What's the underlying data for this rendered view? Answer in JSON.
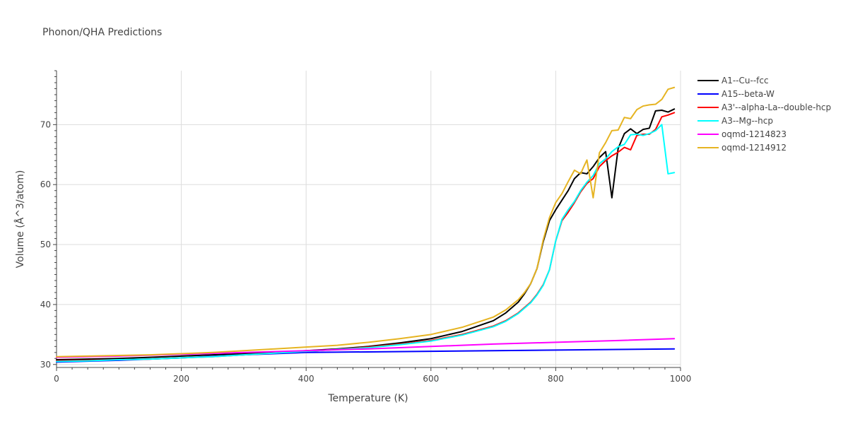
{
  "chart_data": {
    "type": "line",
    "title": "Phonon/QHA Predictions",
    "xlabel": "Temperature (K)",
    "ylabel": "Volume (Å^3/atom)",
    "xlim": [
      0,
      1000
    ],
    "ylim": [
      29.5,
      79
    ],
    "xticks": [
      0,
      200,
      400,
      600,
      800,
      1000
    ],
    "yticks": [
      30,
      40,
      50,
      60,
      70
    ],
    "grid": true,
    "legend_position": "right",
    "series": [
      {
        "name": "A1--Cu--fcc",
        "color": "#000000",
        "x": [
          0,
          50,
          100,
          150,
          200,
          250,
          300,
          350,
          400,
          450,
          500,
          550,
          600,
          650,
          700,
          720,
          740,
          750,
          760,
          770,
          780,
          790,
          800,
          820,
          830,
          840,
          850,
          860,
          870,
          880,
          890,
          900,
          910,
          920,
          930,
          940,
          950,
          960,
          970,
          980,
          990
        ],
        "y": [
          30.8,
          30.9,
          31.0,
          31.2,
          31.4,
          31.6,
          31.8,
          32.0,
          32.3,
          32.6,
          33.0,
          33.6,
          34.3,
          35.5,
          37.3,
          38.6,
          40.4,
          41.8,
          43.5,
          46.0,
          50.5,
          54.0,
          55.8,
          59.0,
          61.0,
          62.0,
          61.8,
          63.0,
          64.5,
          65.5,
          57.8,
          66.0,
          68.5,
          69.3,
          68.5,
          69.2,
          69.4,
          72.3,
          72.4,
          72.1,
          72.6
        ]
      },
      {
        "name": "A15--beta-W",
        "color": "#0000ff",
        "x": [
          0,
          100,
          200,
          300,
          400,
          500,
          600,
          700,
          800,
          900,
          990
        ],
        "y": [
          30.4,
          30.7,
          31.1,
          31.6,
          32.0,
          32.1,
          32.2,
          32.3,
          32.4,
          32.5,
          32.6
        ]
      },
      {
        "name": "A3'--alpha-La--double-hcp",
        "color": "#ff0000",
        "x": [
          0,
          50,
          100,
          150,
          200,
          250,
          300,
          350,
          400,
          450,
          500,
          550,
          600,
          650,
          700,
          720,
          740,
          760,
          770,
          780,
          790,
          800,
          810,
          820,
          830,
          840,
          850,
          860,
          870,
          880,
          890,
          900,
          910,
          920,
          930,
          940,
          950,
          960,
          970,
          980,
          990
        ],
        "y": [
          30.6,
          30.7,
          30.8,
          30.9,
          31.1,
          31.3,
          31.6,
          31.9,
          32.2,
          32.5,
          32.9,
          33.4,
          34.0,
          35.0,
          36.4,
          37.3,
          38.6,
          40.4,
          41.7,
          43.3,
          45.8,
          50.6,
          54.0,
          55.4,
          57.0,
          58.8,
          60.2,
          61.0,
          63.0,
          64.0,
          64.8,
          65.4,
          66.2,
          65.8,
          68.2,
          68.4,
          68.4,
          69.2,
          71.3,
          71.6,
          72.0
        ]
      },
      {
        "name": "A3--Mg--hcp",
        "color": "#00ffff",
        "x": [
          0,
          50,
          100,
          150,
          200,
          250,
          300,
          350,
          400,
          450,
          500,
          550,
          600,
          650,
          700,
          720,
          740,
          760,
          770,
          780,
          790,
          800,
          810,
          820,
          830,
          840,
          850,
          860,
          870,
          880,
          890,
          900,
          910,
          920,
          930,
          940,
          950,
          960,
          970,
          980,
          990
        ],
        "y": [
          30.5,
          30.6,
          30.8,
          30.9,
          31.1,
          31.3,
          31.6,
          31.9,
          32.2,
          32.5,
          32.8,
          33.3,
          33.9,
          34.9,
          36.3,
          37.2,
          38.5,
          40.3,
          41.6,
          43.2,
          45.8,
          50.6,
          54.2,
          55.8,
          57.2,
          59.0,
          60.4,
          61.5,
          63.5,
          64.3,
          65.5,
          66.3,
          66.7,
          68.3,
          68.4,
          68.2,
          68.5,
          69.0,
          70.0,
          61.8,
          62.0
        ]
      },
      {
        "name": "oqmd-1214823",
        "color": "#ff00ff",
        "x": [
          0,
          100,
          200,
          300,
          400,
          500,
          600,
          700,
          800,
          900,
          990
        ],
        "y": [
          31.2,
          31.4,
          31.7,
          32.0,
          32.3,
          32.6,
          33.0,
          33.4,
          33.7,
          34.0,
          34.3
        ]
      },
      {
        "name": "oqmd-1214912",
        "color": "#e6b422",
        "x": [
          0,
          50,
          100,
          150,
          200,
          250,
          300,
          350,
          400,
          450,
          500,
          550,
          600,
          650,
          700,
          720,
          740,
          750,
          760,
          770,
          780,
          790,
          800,
          810,
          820,
          830,
          840,
          845,
          850,
          855,
          860,
          870,
          880,
          890,
          900,
          910,
          920,
          930,
          940,
          950,
          960,
          970,
          980,
          990
        ],
        "y": [
          31.3,
          31.4,
          31.5,
          31.6,
          31.8,
          32.0,
          32.3,
          32.6,
          32.9,
          33.2,
          33.7,
          34.3,
          35.0,
          36.2,
          37.9,
          39.1,
          40.8,
          42.0,
          43.5,
          46.0,
          50.8,
          54.5,
          57.0,
          58.5,
          60.5,
          62.4,
          61.8,
          63.0,
          64.1,
          61.0,
          57.8,
          65.3,
          67.0,
          69.0,
          69.1,
          71.2,
          71.0,
          72.5,
          73.1,
          73.3,
          73.4,
          74.2,
          75.9,
          76.2
        ]
      }
    ]
  }
}
